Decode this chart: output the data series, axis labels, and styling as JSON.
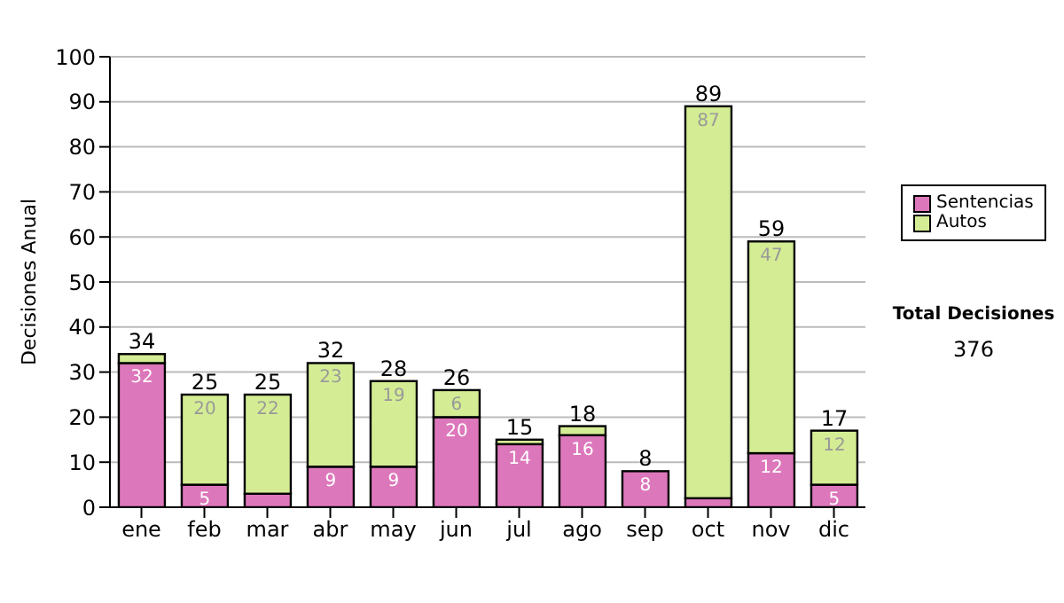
{
  "chart_data": {
    "type": "bar",
    "stacked": true,
    "ylabel": "Decisiones Anual",
    "categories": [
      "ene",
      "feb",
      "mar",
      "abr",
      "may",
      "jun",
      "jul",
      "ago",
      "sep",
      "oct",
      "nov",
      "dic"
    ],
    "series": [
      {
        "name": "Sentencias",
        "color": "#dd77bb",
        "values": [
          32,
          5,
          3,
          9,
          9,
          20,
          14,
          16,
          8,
          2,
          12,
          5
        ],
        "value_labels": [
          "32",
          "5",
          null,
          "9",
          "9",
          "20",
          "14",
          "16",
          "8",
          null,
          "12",
          "5"
        ]
      },
      {
        "name": "Autos",
        "color": "#d4ec94",
        "values": [
          2,
          20,
          22,
          23,
          19,
          6,
          1,
          2,
          0,
          87,
          47,
          12
        ],
        "value_labels": [
          null,
          "20",
          "22",
          "23",
          "19",
          "6",
          null,
          null,
          null,
          "87",
          "47",
          "12"
        ]
      }
    ],
    "totals": [
      "34",
      "25",
      "25",
      "32",
      "28",
      "26",
      "15",
      "18",
      "8",
      "89",
      "59",
      "17"
    ],
    "ylim": [
      0,
      100
    ],
    "yticks": [
      0,
      10,
      20,
      30,
      40,
      50,
      60,
      70,
      80,
      90,
      100
    ],
    "grid": "y",
    "legend": "right",
    "annotations": [
      "Total Decisiones",
      "376"
    ]
  }
}
